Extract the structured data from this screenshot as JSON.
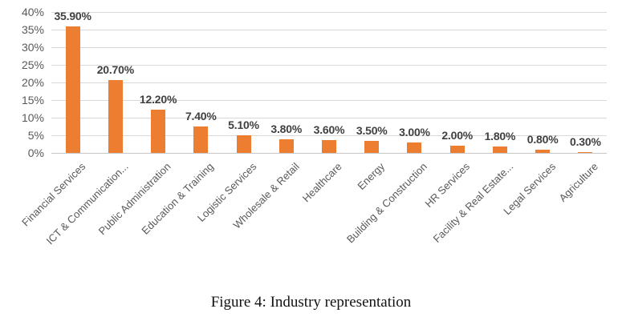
{
  "figure": {
    "caption": "Figure 4: Industry representation"
  },
  "chart_data": {
    "type": "bar",
    "title": "",
    "xlabel": "",
    "ylabel": "",
    "categories": [
      "Financial Services",
      "ICT & Communication...",
      "Public Administration",
      "Education & Training",
      "Logistic Services",
      "Wholesale & Retail",
      "Healthcare",
      "Energy",
      "Building & Construction",
      "HR Services",
      "Facility & Real Estate...",
      "Legal Services",
      "Agriculture"
    ],
    "values": [
      35.9,
      20.7,
      12.2,
      7.4,
      5.1,
      3.8,
      3.6,
      3.5,
      3.0,
      2.0,
      1.8,
      0.8,
      0.3
    ],
    "data_labels": [
      "35.90%",
      "20.70%",
      "12.20%",
      "7.40%",
      "5.10%",
      "3.80%",
      "3.60%",
      "3.50%",
      "3.00%",
      "2.00%",
      "1.80%",
      "0.80%",
      "0.30%"
    ],
    "ylim": [
      0,
      40
    ],
    "ytick_step": 5,
    "ytick_labels": [
      "0%",
      "5%",
      "10%",
      "15%",
      "20%",
      "25%",
      "30%",
      "35%",
      "40%"
    ],
    "grid": "horizontal",
    "legend": "none",
    "colors": {
      "bar": "#ED7D31",
      "gridline": "#D9D9D9",
      "axis_line": "#C6C6C6",
      "ytick_label": "#595959",
      "category_label": "#595959",
      "data_label": "#404040",
      "background": "#FFFFFF"
    }
  }
}
